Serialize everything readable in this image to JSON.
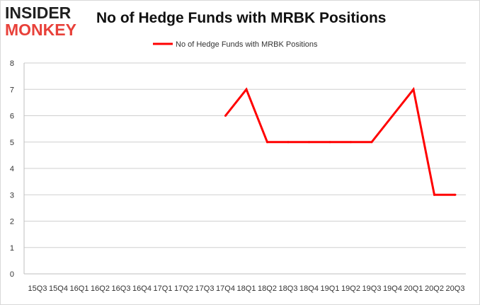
{
  "logo": {
    "top": "INSIDER",
    "bottom": "MONKEY"
  },
  "chart_data": {
    "type": "line",
    "title": "No of Hedge Funds with MRBK Positions",
    "xlabel": "",
    "ylabel": "",
    "categories": [
      "15Q3",
      "15Q4",
      "16Q1",
      "16Q2",
      "16Q3",
      "16Q4",
      "17Q1",
      "17Q2",
      "17Q3",
      "17Q4",
      "18Q1",
      "18Q2",
      "18Q3",
      "18Q4",
      "19Q1",
      "19Q2",
      "19Q3",
      "19Q4",
      "20Q1",
      "20Q2",
      "20Q3"
    ],
    "series": [
      {
        "name": "No of Hedge Funds with MRBK Positions",
        "color": "#ff0000",
        "values": [
          null,
          null,
          null,
          null,
          null,
          null,
          null,
          null,
          null,
          6,
          7,
          5,
          5,
          5,
          5,
          5,
          5,
          6,
          7,
          3,
          3
        ]
      }
    ],
    "ylim": [
      0,
      8
    ],
    "yticks": [
      0,
      1,
      2,
      3,
      4,
      5,
      6,
      7,
      8
    ],
    "grid": true,
    "legend_position": "top-center"
  }
}
